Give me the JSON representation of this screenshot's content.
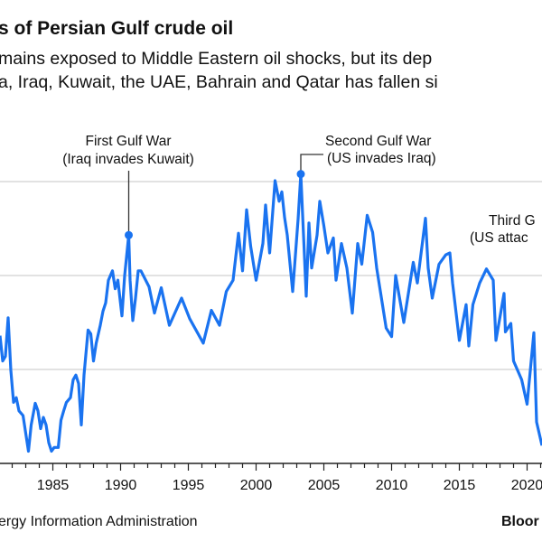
{
  "header": {
    "title": "s of Persian Gulf crude oil",
    "subtitle_line1": "mains exposed to Middle Eastern oil shocks, but its dep",
    "subtitle_line2": "a, Iraq, Kuwait, the UAE, Bahrain and Qatar has fallen si"
  },
  "footer": {
    "source": "ergy Information Administration",
    "brand": "Bloor"
  },
  "colors": {
    "line": "#1a73f0",
    "grid": "#d9d9d9",
    "axis": "#222222",
    "text": "#111111"
  },
  "chart_data": {
    "type": "line",
    "title": "",
    "xlabel": "",
    "ylabel": "",
    "xlim": [
      1981.1,
      2021.1
    ],
    "ylim": [
      0,
      3000
    ],
    "grid": true,
    "y_gridlines": [
      1000,
      2000,
      3000
    ],
    "x_ticks": [
      "1985",
      "1990",
      "1995",
      "2000",
      "2005",
      "2010",
      "2015",
      "2020"
    ],
    "x_ticks_partial": [
      "0"
    ],
    "series": [
      {
        "points": [
          [
            1981.1,
            1360
          ],
          [
            1981.3,
            1090
          ],
          [
            1981.5,
            1140
          ],
          [
            1981.7,
            1550
          ],
          [
            1981.9,
            990
          ],
          [
            1982.1,
            650
          ],
          [
            1982.3,
            700
          ],
          [
            1982.5,
            560
          ],
          [
            1982.8,
            510
          ],
          [
            1983.0,
            320
          ],
          [
            1983.2,
            130
          ],
          [
            1983.4,
            410
          ],
          [
            1983.7,
            640
          ],
          [
            1983.9,
            560
          ],
          [
            1984.1,
            370
          ],
          [
            1984.3,
            490
          ],
          [
            1984.5,
            410
          ],
          [
            1984.7,
            220
          ],
          [
            1984.9,
            130
          ],
          [
            1985.1,
            170
          ],
          [
            1985.4,
            170
          ],
          [
            1985.6,
            460
          ],
          [
            1985.8,
            560
          ],
          [
            1986.0,
            650
          ],
          [
            1986.3,
            700
          ],
          [
            1986.5,
            890
          ],
          [
            1986.7,
            940
          ],
          [
            1986.9,
            850
          ],
          [
            1987.1,
            410
          ],
          [
            1987.3,
            940
          ],
          [
            1987.6,
            1420
          ],
          [
            1987.8,
            1380
          ],
          [
            1988.0,
            1090
          ],
          [
            1988.2,
            1280
          ],
          [
            1988.5,
            1470
          ],
          [
            1988.7,
            1620
          ],
          [
            1988.9,
            1710
          ],
          [
            1989.1,
            1950
          ],
          [
            1989.4,
            2050
          ],
          [
            1989.6,
            1860
          ],
          [
            1989.8,
            1950
          ],
          [
            1990.1,
            1570
          ],
          [
            1990.3,
            2000
          ],
          [
            1990.6,
            2430
          ],
          [
            1990.7,
            1950
          ],
          [
            1990.9,
            1520
          ],
          [
            1991.1,
            1760
          ],
          [
            1991.3,
            2050
          ],
          [
            1991.5,
            2050
          ],
          [
            1992.1,
            1880
          ],
          [
            1992.5,
            1600
          ],
          [
            1993.0,
            1870
          ],
          [
            1993.6,
            1470
          ],
          [
            1994.5,
            1760
          ],
          [
            1995.1,
            1540
          ],
          [
            1996.1,
            1280
          ],
          [
            1996.7,
            1630
          ],
          [
            1997.3,
            1470
          ],
          [
            1997.8,
            1830
          ],
          [
            1998.3,
            1950
          ],
          [
            1998.7,
            2450
          ],
          [
            1999.0,
            2050
          ],
          [
            1999.3,
            2700
          ],
          [
            1999.6,
            2310
          ],
          [
            2000.0,
            1950
          ],
          [
            2000.5,
            2340
          ],
          [
            2000.7,
            2750
          ],
          [
            2001.0,
            2240
          ],
          [
            2001.4,
            3010
          ],
          [
            2001.7,
            2790
          ],
          [
            2001.9,
            2890
          ],
          [
            2002.1,
            2620
          ],
          [
            2002.3,
            2430
          ],
          [
            2002.7,
            1830
          ],
          [
            2003.1,
            2600
          ],
          [
            2003.3,
            3080
          ],
          [
            2003.7,
            1780
          ],
          [
            2003.9,
            2560
          ],
          [
            2004.1,
            2080
          ],
          [
            2004.5,
            2430
          ],
          [
            2004.7,
            2790
          ],
          [
            2005.0,
            2530
          ],
          [
            2005.3,
            2240
          ],
          [
            2005.7,
            2400
          ],
          [
            2005.9,
            1950
          ],
          [
            2006.3,
            2340
          ],
          [
            2006.7,
            2080
          ],
          [
            2007.1,
            1600
          ],
          [
            2007.5,
            2340
          ],
          [
            2007.8,
            2120
          ],
          [
            2008.2,
            2640
          ],
          [
            2008.6,
            2460
          ],
          [
            2008.9,
            2080
          ],
          [
            2009.6,
            1440
          ],
          [
            2010.0,
            1350
          ],
          [
            2010.3,
            2000
          ],
          [
            2010.9,
            1500
          ],
          [
            2011.6,
            2140
          ],
          [
            2011.9,
            1920
          ],
          [
            2012.5,
            2610
          ],
          [
            2012.7,
            2080
          ],
          [
            2013.0,
            1760
          ],
          [
            2013.5,
            2120
          ],
          [
            2014.0,
            2220
          ],
          [
            2014.3,
            2240
          ],
          [
            2014.5,
            1920
          ],
          [
            2015.0,
            1310
          ],
          [
            2015.5,
            1690
          ],
          [
            2015.7,
            1250
          ],
          [
            2016.0,
            1690
          ],
          [
            2016.5,
            1920
          ],
          [
            2017.0,
            2070
          ],
          [
            2017.5,
            1950
          ],
          [
            2017.7,
            1310
          ],
          [
            2018.3,
            1810
          ],
          [
            2018.4,
            1400
          ],
          [
            2018.8,
            1490
          ],
          [
            2019.0,
            1090
          ],
          [
            2019.6,
            890
          ],
          [
            2020.0,
            630
          ],
          [
            2020.5,
            1390
          ],
          [
            2020.7,
            440
          ],
          [
            2021.1,
            190
          ]
        ]
      }
    ],
    "annotations": [
      {
        "line1": "First Gulf War",
        "line2": "(Iraq invades Kuwait)",
        "x": 1990.6,
        "y": 2430
      },
      {
        "line1": "Second Gulf War",
        "line2": "(US invades Iraq)",
        "x": 2003.3,
        "y": 3080
      },
      {
        "line1": "Third G",
        "line2": "(US attac"
      }
    ]
  }
}
